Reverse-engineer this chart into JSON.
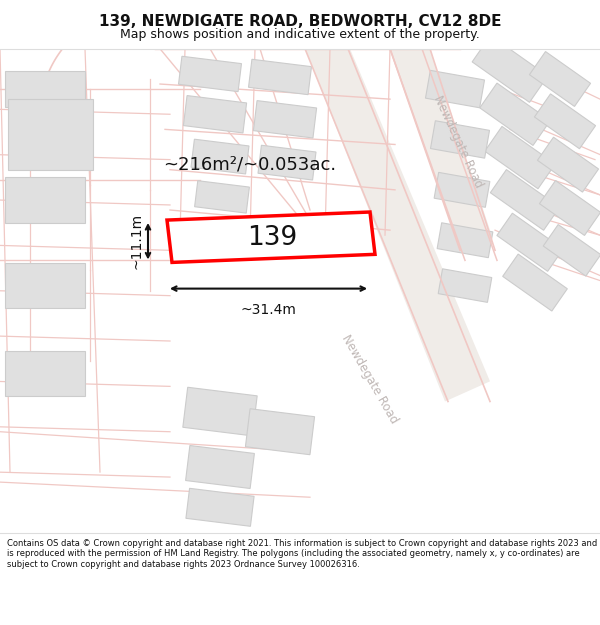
{
  "title": "139, NEWDIGATE ROAD, BEDWORTH, CV12 8DE",
  "subtitle": "Map shows position and indicative extent of the property.",
  "footer": "Contains OS data © Crown copyright and database right 2021. This information is subject to Crown copyright and database rights 2023 and is reproduced with the permission of HM Land Registry. The polygons (including the associated geometry, namely x, y co-ordinates) are subject to Crown copyright and database rights 2023 Ordnance Survey 100026316.",
  "bg_color": "#ffffff",
  "map_bg": "#ffffff",
  "road_outline": "#f0c8c4",
  "road_fill": "#f5eeec",
  "building_fill": "#e0e0e0",
  "building_stroke": "#cccccc",
  "highlight_fill": "#ffffff",
  "highlight_stroke": "#ff0000",
  "road_label_color": "#c0b8b6",
  "area_label": "~216m²/~0.053ac.",
  "width_label": "~31.4m",
  "height_label": "~11.1m",
  "plot_label": "139"
}
